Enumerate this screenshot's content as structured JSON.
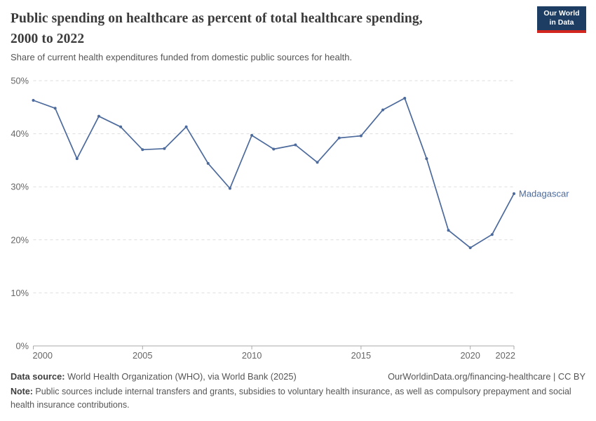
{
  "header": {
    "title": "Public spending on healthcare as percent of total healthcare spending, 2000 to 2022",
    "subtitle": "Share of current health expenditures funded from domestic public sources for health.",
    "logo_line1": "Our World",
    "logo_line2": "in Data"
  },
  "chart_data": {
    "type": "line",
    "title": "Public spending on healthcare as percent of total healthcare spending, 2000 to 2022",
    "xlabel": "",
    "ylabel": "",
    "x": [
      2000,
      2001,
      2002,
      2003,
      2004,
      2005,
      2006,
      2007,
      2008,
      2009,
      2010,
      2011,
      2012,
      2013,
      2014,
      2015,
      2016,
      2017,
      2018,
      2019,
      2020,
      2021,
      2022
    ],
    "series": [
      {
        "name": "Madagascar",
        "color": "#4C6A9C",
        "values": [
          46.3,
          44.8,
          35.3,
          43.3,
          41.3,
          37.0,
          37.2,
          41.3,
          34.4,
          29.7,
          39.7,
          37.1,
          37.9,
          34.6,
          39.2,
          39.6,
          44.5,
          46.7,
          35.3,
          21.8,
          18.5,
          21.0,
          28.7
        ]
      }
    ],
    "xticks": [
      2000,
      2005,
      2010,
      2015,
      2020,
      2022
    ],
    "yticks": [
      0,
      10,
      20,
      30,
      40,
      50
    ],
    "ytick_suffix": "%",
    "xlim": [
      2000,
      2022
    ],
    "ylim": [
      0,
      50
    ],
    "grid": true,
    "grid_style": "dashed",
    "legend_position": "end-of-line"
  },
  "footer": {
    "data_source_label": "Data source:",
    "data_source": " World Health Organization (WHO), via World Bank (2025)",
    "link": "OurWorldinData.org/financing-healthcare | CC BY",
    "note_label": "Note:",
    "note": " Public sources include internal transfers and grants, subsidies to voluntary health insurance, as well as compulsory prepayment and social health insurance contributions."
  },
  "colors": {
    "line": "#4C6A9C",
    "series_label": "#4C6A9C",
    "grid": "#dddddd",
    "axis": "#a9a9a9",
    "tick_label": "#666666",
    "title": "#3b3b3b",
    "subtitle": "#555555",
    "logo_bg": "#1d3d63",
    "logo_red": "#d3261f"
  }
}
